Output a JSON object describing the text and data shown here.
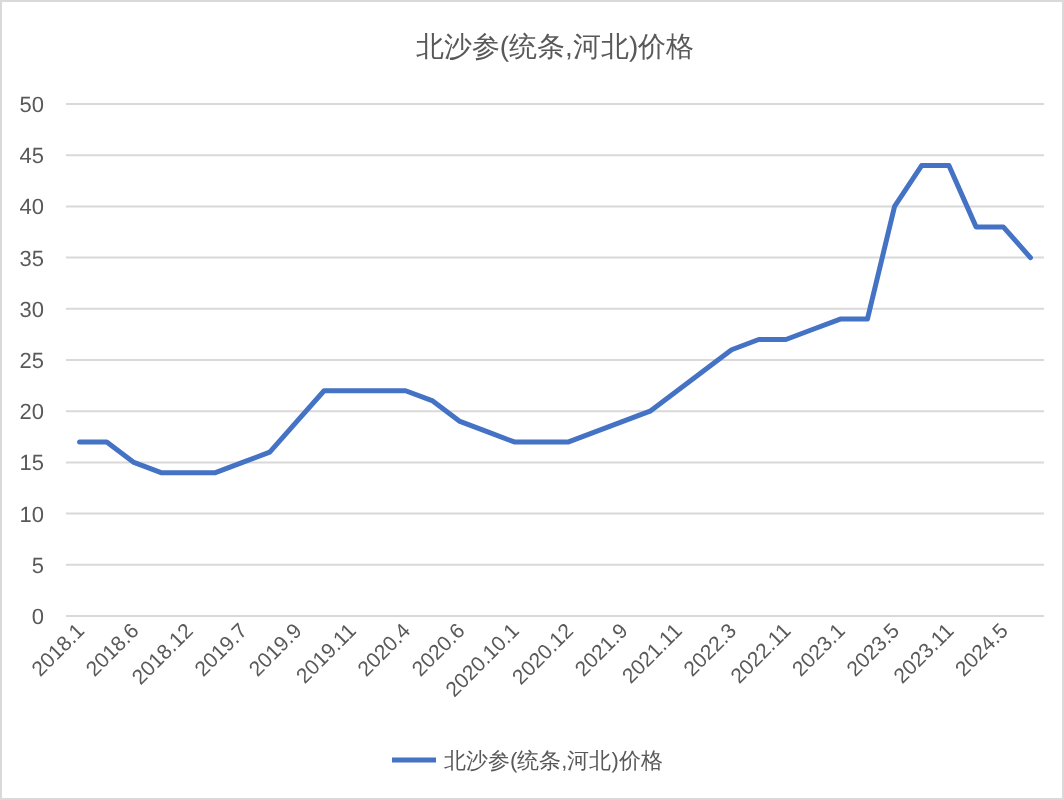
{
  "chart_data": {
    "type": "line",
    "title": "北沙参(统条,河北)价格",
    "categories": [
      "2018.1",
      null,
      "2018.6",
      null,
      "2018.12",
      null,
      "2019.7",
      null,
      "2019.9",
      null,
      "2019.11",
      null,
      "2020.4",
      null,
      "2020.6",
      null,
      "2020.10.1",
      null,
      "2020.12",
      null,
      "2021.9",
      null,
      "2021.11",
      null,
      "2022.3",
      null,
      "2022.11",
      null,
      "2023.1",
      null,
      "2023.5",
      null,
      "2023.11",
      null,
      "2024.5",
      null
    ],
    "series": [
      {
        "name": "北沙参(统条,河北)价格",
        "color": "#4472c4",
        "values": [
          17,
          17,
          15,
          14,
          14,
          14,
          15,
          16,
          19,
          22,
          22,
          22,
          22,
          21,
          19,
          18,
          17,
          17,
          17,
          18,
          19,
          20,
          22,
          24,
          26,
          27,
          27,
          28,
          29,
          29,
          40,
          44,
          44,
          38,
          38,
          35
        ]
      }
    ],
    "ylim": [
      0,
      50
    ],
    "yticks": [
      0,
      5,
      10,
      15,
      20,
      25,
      30,
      35,
      40,
      45,
      50
    ],
    "grid": "y",
    "legend": "bottom",
    "marker": "none",
    "line_style": "solid"
  }
}
